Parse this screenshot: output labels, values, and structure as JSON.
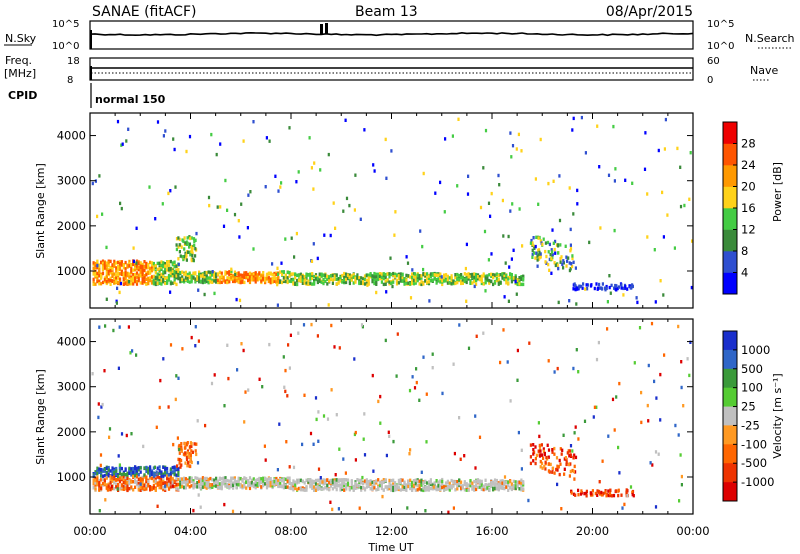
{
  "header": {
    "radar": "SANAE (fitACF)",
    "beam": "Beam 13",
    "date": "08/Apr/2015"
  },
  "nsky_panel": {
    "left_label": "N.Sky",
    "right_label": "N.Search",
    "left_ticks": [
      "10^5",
      "10^0"
    ],
    "right_ticks": [
      "10^5",
      "10^0"
    ]
  },
  "freq_panel": {
    "left_label_1": "Freq.",
    "left_label_2": "[MHz]",
    "right_label": "Nave",
    "left_ticks": [
      "18",
      "8"
    ],
    "right_ticks": [
      "60",
      "0"
    ]
  },
  "cpid": {
    "label": "CPID",
    "value": "normal 150"
  },
  "chart_data": [
    {
      "type": "heatmap",
      "name": "power",
      "ylabel": "Slant Range [km]",
      "xlabel": "Time UT",
      "x_ticks": [
        "00:00",
        "04:00",
        "08:00",
        "12:00",
        "16:00",
        "20:00",
        "00:00"
      ],
      "y_ticks": [
        "1000",
        "2000",
        "3000",
        "4000"
      ],
      "xlim_hours": [
        0,
        24
      ],
      "ylim_km": [
        180,
        4500
      ],
      "colorbar": {
        "label": "Power [dB]",
        "ticks": [
          "4",
          "8",
          "12",
          "16",
          "20",
          "24",
          "28"
        ],
        "colors": [
          "#0000ff",
          "#2f4fd0",
          "#3a8a3a",
          "#44cc44",
          "#ffd21a",
          "#ff9900",
          "#ff5500",
          "#ee0000"
        ]
      }
    },
    {
      "type": "heatmap",
      "name": "velocity",
      "ylabel": "Slant Range [km]",
      "xlabel": "Time UT",
      "x_ticks": [
        "00:00",
        "04:00",
        "08:00",
        "12:00",
        "16:00",
        "20:00",
        "00:00"
      ],
      "y_ticks": [
        "1000",
        "2000",
        "3000",
        "4000"
      ],
      "xlim_hours": [
        0,
        24
      ],
      "ylim_km": [
        180,
        4500
      ],
      "colorbar": {
        "label": "Velocity [m s⁻¹]",
        "ticks": [
          "1000",
          "500",
          "100",
          "25",
          "-25",
          "-100",
          "-500",
          "-1000"
        ],
        "colors": [
          "#1a2fcc",
          "#2f66c8",
          "#3a9a3a",
          "#55cc33",
          "#c0c0c0",
          "#ff9922",
          "#ff6600",
          "#ee3300",
          "#dd0000"
        ]
      }
    }
  ],
  "xaxis": {
    "title": "Time UT",
    "ticks": [
      "00:00",
      "04:00",
      "08:00",
      "12:00",
      "16:00",
      "20:00",
      "00:00"
    ]
  }
}
